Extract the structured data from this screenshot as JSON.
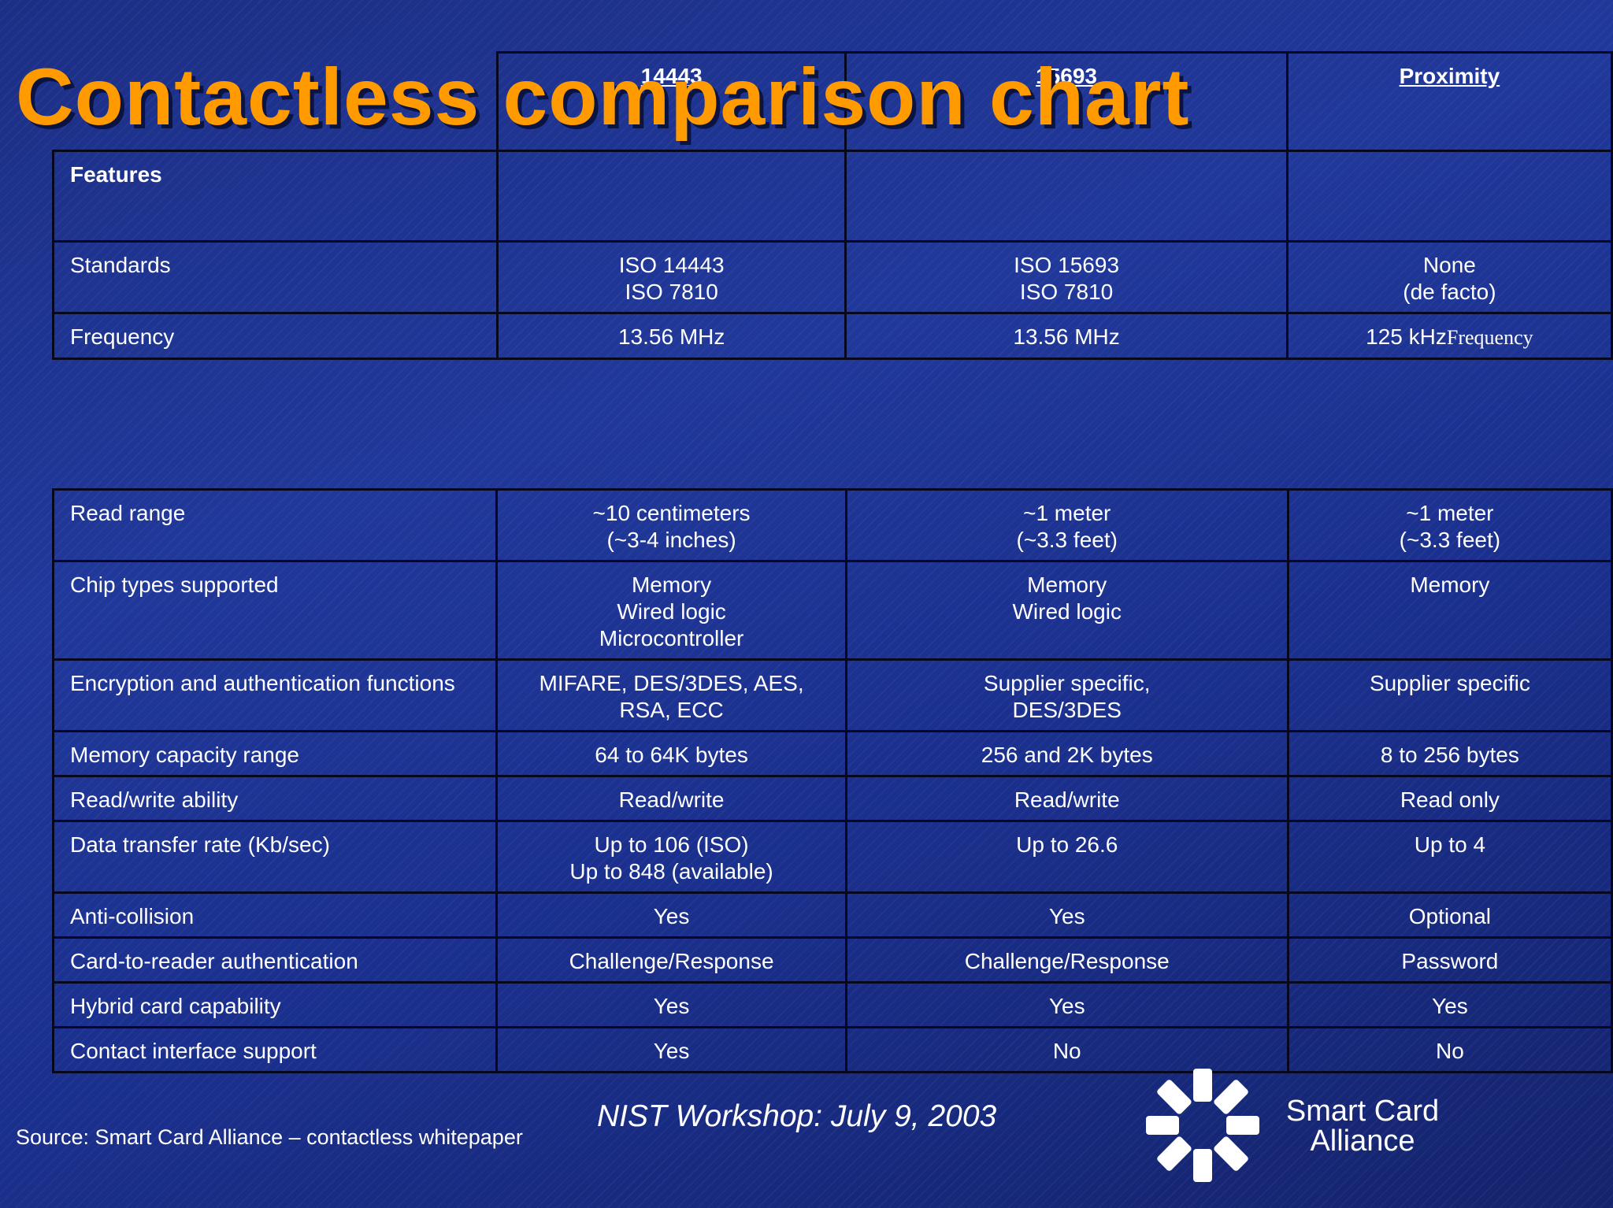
{
  "title": "Contactless comparison chart",
  "columns": [
    "14443",
    "15693",
    "Proximity"
  ],
  "features_label": "Features",
  "rows_top": [
    {
      "label": "Standards",
      "values": [
        [
          "ISO 14443",
          "ISO 7810"
        ],
        [
          "ISO 15693",
          "ISO 7810"
        ],
        [
          "None",
          "(de facto)"
        ]
      ]
    },
    {
      "label": "Frequency",
      "values": [
        [
          "13.56 MHz"
        ],
        [
          "13.56 MHz"
        ],
        [
          "125 kHz"
        ]
      ],
      "proximity_suffix": "Frequency"
    }
  ],
  "rows_bottom": [
    {
      "label": "Read range",
      "values": [
        [
          "~10 centimeters",
          "(~3-4 inches)"
        ],
        [
          "~1 meter",
          "(~3.3 feet)"
        ],
        [
          "~1 meter",
          "(~3.3 feet)"
        ]
      ]
    },
    {
      "label": "Chip types supported",
      "values": [
        [
          "Memory",
          "Wired logic",
          "Microcontroller"
        ],
        [
          "Memory",
          "Wired logic"
        ],
        [
          "Memory"
        ]
      ]
    },
    {
      "label": "Encryption and authentication functions",
      "values": [
        [
          "MIFARE, DES/3DES, AES,",
          "RSA, ECC"
        ],
        [
          "Supplier specific,",
          "DES/3DES"
        ],
        [
          "Supplier specific"
        ]
      ]
    },
    {
      "label": "Memory capacity range",
      "values": [
        [
          "64 to 64K bytes"
        ],
        [
          "256 and 2K bytes"
        ],
        [
          "8 to 256 bytes"
        ]
      ]
    },
    {
      "label": "Read/write ability",
      "values": [
        [
          "Read/write"
        ],
        [
          "Read/write"
        ],
        [
          "Read only"
        ]
      ]
    },
    {
      "label": "Data transfer rate (Kb/sec)",
      "values": [
        [
          "Up to 106 (ISO)",
          "Up to 848 (available)"
        ],
        [
          "Up to 26.6"
        ],
        [
          "Up to 4"
        ]
      ]
    },
    {
      "label": "Anti-collision",
      "values": [
        [
          "Yes"
        ],
        [
          "Yes"
        ],
        [
          "Optional"
        ]
      ]
    },
    {
      "label": "Card-to-reader authentication",
      "values": [
        [
          "Challenge/Response"
        ],
        [
          "Challenge/Response"
        ],
        [
          "Password"
        ]
      ]
    },
    {
      "label": "Hybrid card capability",
      "values": [
        [
          "Yes"
        ],
        [
          "Yes"
        ],
        [
          "Yes"
        ]
      ]
    },
    {
      "label": "Contact interface support",
      "values": [
        [
          "Yes"
        ],
        [
          "No"
        ],
        [
          "No"
        ]
      ]
    }
  ],
  "footer": {
    "source": "Source: Smart Card Alliance – contactless whitepaper",
    "event": "NIST Workshop: July 9, 2003",
    "logo_line1": "Smart Card",
    "logo_line2": "Alliance"
  },
  "colors": {
    "title": "#ff9a00",
    "background": "#1f3595",
    "border": "#05081e"
  }
}
